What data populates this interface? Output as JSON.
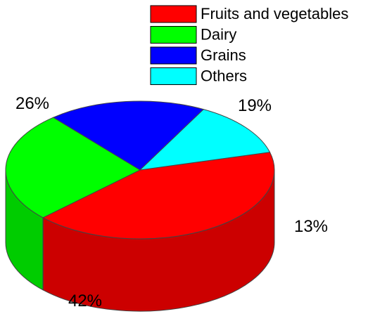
{
  "chart_data": {
    "type": "pie",
    "style": "3d",
    "series": [
      {
        "name": "Fruits and vegetables",
        "value": 42,
        "label": "42%",
        "color": "#ff0000"
      },
      {
        "name": "Dairy",
        "value": 26,
        "label": "26%",
        "color": "#00ff00"
      },
      {
        "name": "Grains",
        "value": 19,
        "label": "19%",
        "color": "#0000ff"
      },
      {
        "name": "Others",
        "value": 13,
        "label": "13%",
        "color": "#00ffff"
      }
    ],
    "legend_placement": "top-right"
  }
}
